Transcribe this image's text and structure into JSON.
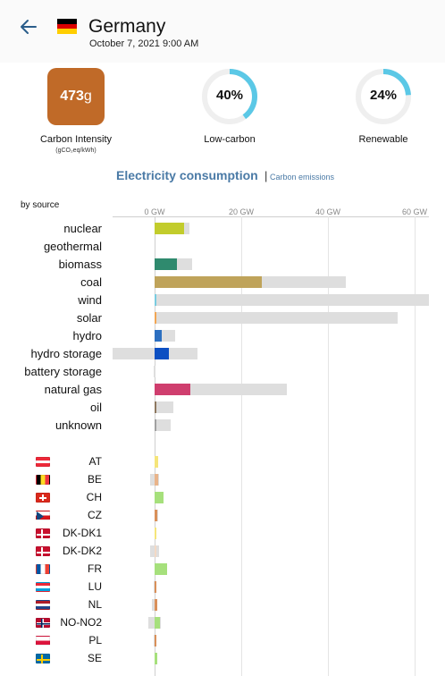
{
  "header": {
    "country": "Germany",
    "timestamp": "October 7, 2021 9:00 AM",
    "flag_colors": [
      "#000000",
      "#dd0000",
      "#ffce00"
    ]
  },
  "carbon_intensity": {
    "value": "473",
    "unit": "g",
    "label": "Carbon Intensity",
    "sublabel": "(gCO₂eq/kWh)",
    "color": "#c06a28"
  },
  "low_carbon": {
    "value": "40%",
    "fraction": 0.4,
    "label": "Low-carbon"
  },
  "renewable": {
    "value": "24%",
    "fraction": 0.24,
    "label": "Renewable"
  },
  "gauge_colors": {
    "fill": "#5bc8e6",
    "track": "#efefef"
  },
  "tabs": {
    "active": "Electricity consumption",
    "separator": "|",
    "inactive": "Carbon emissions"
  },
  "chart": {
    "by_source_label": "by source",
    "axis_ticks": [
      "0 GW",
      "20 GW",
      "40 GW",
      "60 GW"
    ],
    "axis_tick_values": [
      0,
      20,
      40,
      60
    ],
    "sources": [
      {
        "name": "nuclear",
        "value": 6.8,
        "capacity": 8.1,
        "negative_capacity": 0,
        "color": "#c2cc2c"
      },
      {
        "name": "geothermal",
        "value": 0,
        "capacity": 0,
        "negative_capacity": 0,
        "color": "#b94a2c"
      },
      {
        "name": "biomass",
        "value": 5.2,
        "capacity": 8.6,
        "negative_capacity": 0,
        "color": "#2f8a6e"
      },
      {
        "name": "coal",
        "value": 24.7,
        "capacity": 44.2,
        "negative_capacity": 0,
        "color": "#bfa35a"
      },
      {
        "name": "wind",
        "value": 0.4,
        "capacity": 63.9,
        "negative_capacity": 0,
        "color": "#79cce0"
      },
      {
        "name": "solar",
        "value": 0.2,
        "capacity": 56.1,
        "negative_capacity": 0,
        "color": "#f2a654"
      },
      {
        "name": "hydro",
        "value": 1.7,
        "capacity": 4.8,
        "negative_capacity": 0,
        "color": "#2c6fc0"
      },
      {
        "name": "hydro storage",
        "value": 3.3,
        "capacity": 9.8,
        "negative_capacity": 9.8,
        "color": "#0c4fc2"
      },
      {
        "name": "battery storage",
        "value": 0,
        "capacity": 0.2,
        "negative_capacity": 0.2,
        "color": "#b2b2b2"
      },
      {
        "name": "natural gas",
        "value": 8.3,
        "capacity": 30.5,
        "negative_capacity": 0,
        "color": "#cf3e6e"
      },
      {
        "name": "oil",
        "value": 0.5,
        "capacity": 4.4,
        "negative_capacity": 0,
        "color": "#8e7860"
      },
      {
        "name": "unknown",
        "value": 0.2,
        "capacity": 3.7,
        "negative_capacity": 0,
        "color": "#a0a0a0"
      }
    ],
    "exchanges": [
      {
        "code": "AT",
        "value": 0.8,
        "capacity": 0.9,
        "negative_capacity": 0,
        "color": "#f5e57a",
        "flag": [
          "#ed2939",
          "#ffffff",
          "#ed2939"
        ],
        "flag_dir": "h"
      },
      {
        "code": "BE",
        "value": 0.8,
        "capacity": 1.0,
        "negative_capacity": 1.0,
        "color": "#e9b48a",
        "flag": [
          "#000000",
          "#fdda24",
          "#ef3340"
        ],
        "flag_dir": "v"
      },
      {
        "code": "CH",
        "value": 2.0,
        "capacity": 2.0,
        "negative_capacity": 0,
        "color": "#a6e07c",
        "flag": [
          "#da291c"
        ],
        "flag_dir": "cross"
      },
      {
        "code": "CZ",
        "value": 0.7,
        "capacity": 0.8,
        "negative_capacity": 0,
        "color": "#d9905a",
        "flag": [
          "#ffffff",
          "#d7141a",
          "#11457e"
        ],
        "flag_dir": "cz"
      },
      {
        "code": "DK-DK1",
        "value": 0.2,
        "capacity": 0.2,
        "negative_capacity": 0,
        "color": "#f5e57a",
        "flag": [
          "#c8102e"
        ],
        "flag_dir": "nordic"
      },
      {
        "code": "DK-DK2",
        "value": 0.4,
        "capacity": 1.1,
        "negative_capacity": 1.1,
        "color": "#f3d9c4",
        "flag": [
          "#c8102e"
        ],
        "flag_dir": "nordic"
      },
      {
        "code": "FR",
        "value": 2.8,
        "capacity": 2.8,
        "negative_capacity": 0,
        "color": "#a6e07c",
        "flag": [
          "#0055a4",
          "#ffffff",
          "#ef4135"
        ],
        "flag_dir": "v"
      },
      {
        "code": "LU",
        "value": 0.3,
        "capacity": 0.3,
        "negative_capacity": 0.3,
        "color": "#d9905a",
        "flag": [
          "#ed2939",
          "#ffffff",
          "#00a1de"
        ],
        "flag_dir": "h"
      },
      {
        "code": "NL",
        "value": 0.6,
        "capacity": 0.6,
        "negative_capacity": 0.6,
        "color": "#d9905a",
        "flag": [
          "#ae1c28",
          "#ffffff",
          "#21468b"
        ],
        "flag_dir": "h"
      },
      {
        "code": "NO-NO2",
        "value": 1.3,
        "capacity": 1.4,
        "negative_capacity": 1.4,
        "color": "#a6e07c",
        "flag": [
          "#ba0c2f",
          "#00205b"
        ],
        "flag_dir": "nordic2"
      },
      {
        "code": "PL",
        "value": 0.3,
        "capacity": 0.3,
        "negative_capacity": 0.3,
        "color": "#d9905a",
        "flag": [
          "#ffffff",
          "#dc143c"
        ],
        "flag_dir": "h2"
      },
      {
        "code": "SE",
        "value": 0.6,
        "capacity": 0.6,
        "negative_capacity": 0,
        "color": "#a6e07c",
        "flag": [
          "#006aa7",
          "#fecc00"
        ],
        "flag_dir": "nordicSE"
      }
    ]
  }
}
